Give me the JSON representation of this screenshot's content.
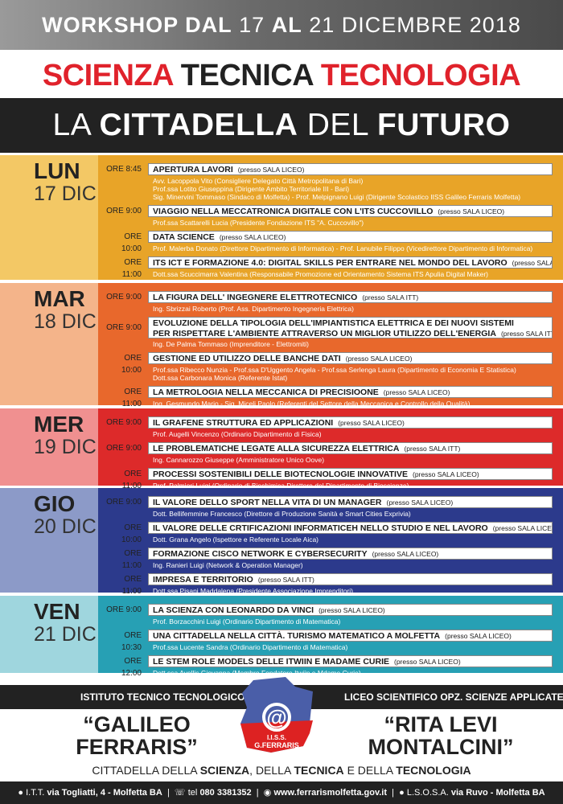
{
  "header": {
    "pre": "WORKSHOP DAL",
    "from": "17",
    "mid": "AL",
    "to": "21 DICEMBRE 2018"
  },
  "title": {
    "w1": "SCIENZA",
    "w2": "TECNICA",
    "w3": "TECNOLOGIA",
    "l2a": "LA",
    "l2b": "CITTADELLA",
    "l2c": "DEL",
    "l2d": "FUTURO"
  },
  "days": [
    {
      "name": "LUN",
      "date": "17 DIC",
      "color": "#e8a428",
      "light": "#f3c865",
      "events": [
        {
          "time": "ORE 8:45",
          "title": "APERTURA LAVORI",
          "place": "(presso SALA LICEO)",
          "speakers": [
            "Avv. Lacoppola Vito (Consigliere Delegato Città Metropolitana di Bari)",
            "Prof.ssa Lotito Giuseppina (Dirigente Ambito Territoriale III - Bari)",
            "Sig. Minervini Tommaso (Sindaco di Molfetta) - Prof. Melpignano Luigi (Dirigente Scolastico IISS Galileo Ferraris Molfetta)"
          ]
        },
        {
          "time": "ORE 9:00",
          "title": "VIAGGIO NELLA MECCATRONICA DIGITALE CON L'ITS CUCCOVILLO",
          "place": "(presso SALA LICEO)",
          "speakers": [
            "Prof.ssa Scattarelli Lucia (Presidente Fondazione ITS \"A. Cuccovillo\")"
          ]
        },
        {
          "time": "ORE 10:00",
          "title": "DATA SCIENCE",
          "place": "(presso SALA LICEO)",
          "speakers": [
            "Prof. Malerba Donato (Direttore Dipartimento di Informatica) - Prof. Lanubile Filippo (Vicedirettore Dipartimento di Informatica)"
          ]
        },
        {
          "time": "ORE 11:00",
          "title": "ITS ICT E FORMAZIONE 4.0: DIGITAL SKILLS PER ENTRARE NEL MONDO DEL LAVORO",
          "place": "(presso SALA LICEO)",
          "speakers": [
            "Dott.ssa Scuccimarra Valentina (Responsabile Promozione ed Orientamento Sistema ITS Apulia Digital Maker)"
          ]
        }
      ]
    },
    {
      "name": "MAR",
      "date": "18 DIC",
      "color": "#e8682c",
      "light": "#f4b48a",
      "events": [
        {
          "time": "ORE 9:00",
          "title": "LA FIGURA DELL' INGEGNERE ELETTROTECNICO",
          "place": "(presso SALA ITT)",
          "speakers": [
            "Ing. Sbrizzai Roberto (Prof. Ass. Dipartimento Ingegneria Elettrica)"
          ]
        },
        {
          "time": "ORE 9:00",
          "title": "EVOLUZIONE DELLA TIPOLOGIA DELL'IMPIANTISTICA ELETTRICA E DEI NUOVI SISTEMI",
          "title2": "PER RISPETTARE L'AMBIENTE ATTRAVERSO UN MIGLIOR UTILIZZO DELL'ENERGIA",
          "place": "(presso SALA ITT)",
          "speakers": [
            "Ing. De Palma Tommaso (Imprenditore - Elettromiti)"
          ]
        },
        {
          "time": "ORE 10:00",
          "title": "GESTIONE ED UTILIZZO DELLE BANCHE DATI",
          "place": "(presso SALA LICEO)",
          "speakers": [
            "Prof.ssa Ribecco Nunzia - Prof.ssa D'Uggento Angela - Prof.ssa Serlenga Laura (Dipartimento di Economia E Statistica)",
            "Dott.ssa Carbonara Monica (Referente Istat)"
          ]
        },
        {
          "time": "ORE 11:00",
          "title": "LA METROLOGIA NELLA MECCANICA DI PRECISIOONE",
          "place": "(presso SALA LICEO)",
          "speakers": [
            "Ing. Gesmundo Mario - Sig. Miceli Paolo (Referenti del Settore della Meccanica e Controllo della Qualità)"
          ]
        }
      ]
    },
    {
      "name": "MER",
      "date": "19 DIC",
      "color": "#dd2a2a",
      "light": "#f09090",
      "events": [
        {
          "time": "ORE 9:00",
          "title": "IL GRAFENE STRUTTURA ED APPLICAZIONI",
          "place": "(presso SALA LICEO)",
          "speakers": [
            "Prof. Augelli Vincenzo (Ordinario Dipartimento di Fisica)"
          ]
        },
        {
          "time": "ORE 9:00",
          "title": "LE PROBLEMATICHE LEGATE ALLA SICUREZZA ELETTRICA",
          "place": "(presso SALA ITT)",
          "speakers": [
            "Ing. Cannarozzo Giuseppe (Amministratore Unico Oove)"
          ]
        },
        {
          "time": "ORE 11:00",
          "title": "PROCESSI SOSTENIBILI DELLE BIOTECNOLOGIE INNOVATIVE",
          "place": "(presso SALA LICEO)",
          "speakers": [
            "Prof. Palmieri Luigi (Ordinario di Biochimica Direttore del Dipartimento di Bioscienze)"
          ]
        }
      ]
    },
    {
      "name": "GIO",
      "date": "20 DIC",
      "color": "#2c3a8c",
      "light": "#8c9ac8",
      "events": [
        {
          "time": "ORE 9:00",
          "title": "IL VALORE DELLO SPORT NELLA VITA DI UN MANAGER",
          "place": "(presso SALA LICEO)",
          "speakers": [
            "Dott. Bellifemmine Francesco (Direttore di Produzione Sanità e Smart Cities Exprivia)"
          ]
        },
        {
          "time": "ORE 10:00",
          "title": "IL VALORE DELLE CRTIFICAZIONI INFORMATICEH NELLO STUDIO E NEL LAVORO",
          "place": "(presso SALA LICEO)",
          "speakers": [
            "Dott. Grana Angelo (Ispettore e Referente Locale Aica)"
          ]
        },
        {
          "time": "ORE 11:00",
          "title": "FORMAZIONE CISCO NETWORK E CYBERSECURITY",
          "place": "(presso SALA LICEO)",
          "speakers": [
            "Ing. Ranieri Luigi (Network & Operation Manager)"
          ]
        },
        {
          "time": "ORE 11:00",
          "title": "IMPRESA E TERRITORIO",
          "place": "(presso SALA ITT)",
          "speakers": [
            "Dott.ssa Pisani Maddalena (Presidente Associazione Imprenditori)"
          ]
        }
      ]
    },
    {
      "name": "VEN",
      "date": "21 DIC",
      "color": "#27a0b4",
      "light": "#9fd6de",
      "events": [
        {
          "time": "ORE 9:00",
          "title": "LA SCIENZA CON LEONARDO DA VINCI",
          "place": "(presso SALA LICEO)",
          "speakers": [
            "Prof. Borzacchini Luigi (Ordinario Dipartimento di Matematica)"
          ]
        },
        {
          "time": "ORE 10:30",
          "title": "UNA CITTADELLA NELLA CITTÀ. TURISMO MATEMATICO A MOLFETTA",
          "place": "(presso SALA LICEO)",
          "speakers": [
            "Prof.ssa Lucente Sandra (Ordinario Dipartimento di Matematica)"
          ]
        },
        {
          "time": "ORE 12:00",
          "title": "LE STEM ROLE MODELS DELLE ITWIIN E MADAME CURIE",
          "place": "(presso SALA LICEO)",
          "speakers": [
            "Dott.ssa Avellis Giovanna (Membro Fondatore Itwiin e Mdame Curie)"
          ]
        }
      ]
    }
  ],
  "schools": {
    "left_label": "ISTITUTO TECNICO TECNOLOGICO",
    "right_label": "LICEO SCIENTIFICO OPZ. SCIENZE APPLICATE",
    "left1": "“GALILEO",
    "left2": "FERRARIS”",
    "right1": "“RITA LEVI",
    "right2": "MONTALCINI”",
    "logo_text1": "I.I.S.S.",
    "logo_text2": "G.FERRARIS"
  },
  "slogan": {
    "a": "CITTADELLA DELLA",
    "b": "SCIENZA",
    "c": ", DELLA",
    "d": "TECNICA",
    "e": "E DELLA",
    "f": "TECNOLOGIA"
  },
  "footer": {
    "itt_label": "I.T.T.",
    "itt_addr": "via Togliatti, 4 - Molfetta BA",
    "tel_label": "tel",
    "tel": "080 3381352",
    "web": "www.ferrarismolfetta.gov.it",
    "losa_label": "L.S.O.S.A.",
    "losa_addr": "via Ruvo - Molfetta BA"
  }
}
